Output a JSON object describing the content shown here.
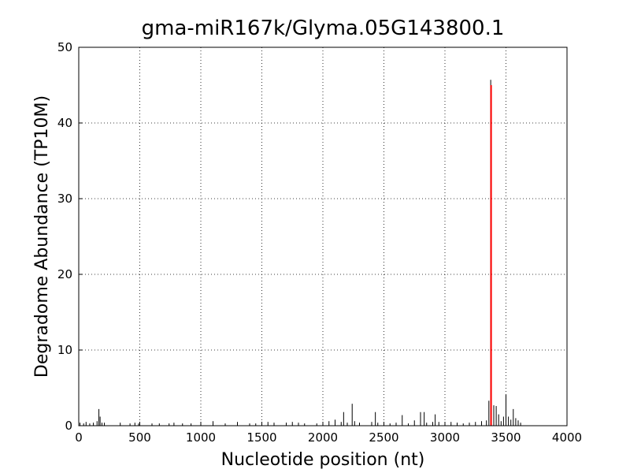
{
  "chart_data": {
    "type": "vlines",
    "title": "gma-miR167k/Glyma.05G143800.1",
    "xlabel": "Nucleotide position (nt)",
    "ylabel": "Degradome Abundance (TP10M)",
    "xlim": [
      0,
      4000
    ],
    "xticks": [
      0,
      500,
      1000,
      1500,
      2000,
      2500,
      3000,
      3500,
      4000
    ],
    "ylim": [
      0,
      50
    ],
    "yticks": [
      0,
      10,
      20,
      30,
      40,
      50
    ],
    "grid": true,
    "series": [
      {
        "color": "#000000",
        "width": 1,
        "x": [
          10,
          40,
          60,
          90,
          120,
          150,
          165,
          175,
          190,
          210,
          340,
          420,
          460,
          490,
          600,
          660,
          740,
          780,
          850,
          920,
          1000,
          1100,
          1200,
          1300,
          1400,
          1450,
          1500,
          1550,
          1600,
          1700,
          1750,
          1800,
          1850,
          1950,
          2000,
          2050,
          2100,
          2150,
          2170,
          2200,
          2240,
          2260,
          2300,
          2400,
          2430,
          2450,
          2500,
          2550,
          2600,
          2650,
          2700,
          2750,
          2800,
          2830,
          2850,
          2900,
          2920,
          2950,
          3000,
          3050,
          3100,
          3150,
          3200,
          3250,
          3300,
          3340,
          3360,
          3375,
          3400,
          3420,
          3440,
          3460,
          3480,
          3500,
          3520,
          3540,
          3560,
          3580,
          3600,
          3620
        ],
        "values": [
          0.4,
          0.3,
          0.5,
          0.3,
          0.4,
          0.6,
          2.2,
          1.2,
          0.4,
          0.4,
          0.4,
          0.3,
          0.4,
          0.3,
          0.3,
          0.3,
          0.3,
          0.4,
          0.3,
          0.3,
          0.2,
          0.6,
          0.3,
          0.5,
          0.3,
          0.3,
          0.3,
          0.5,
          0.4,
          0.4,
          0.5,
          0.4,
          0.3,
          0.3,
          0.4,
          0.6,
          0.8,
          0.5,
          1.8,
          0.4,
          2.9,
          0.6,
          0.4,
          0.5,
          1.8,
          0.4,
          0.4,
          0.3,
          0.4,
          1.4,
          0.3,
          0.7,
          1.8,
          1.8,
          0.4,
          0.5,
          1.5,
          0.5,
          0.4,
          0.5,
          0.4,
          0.3,
          0.4,
          0.5,
          0.6,
          0.7,
          3.3,
          45.7,
          2.7,
          2.6,
          1.5,
          0.6,
          1.2,
          4.1,
          1.2,
          0.8,
          2.2,
          1.0,
          0.7,
          0.4
        ]
      },
      {
        "color": "#ff0000",
        "width": 2,
        "x": [
          3378
        ],
        "values": [
          45
        ]
      }
    ]
  }
}
